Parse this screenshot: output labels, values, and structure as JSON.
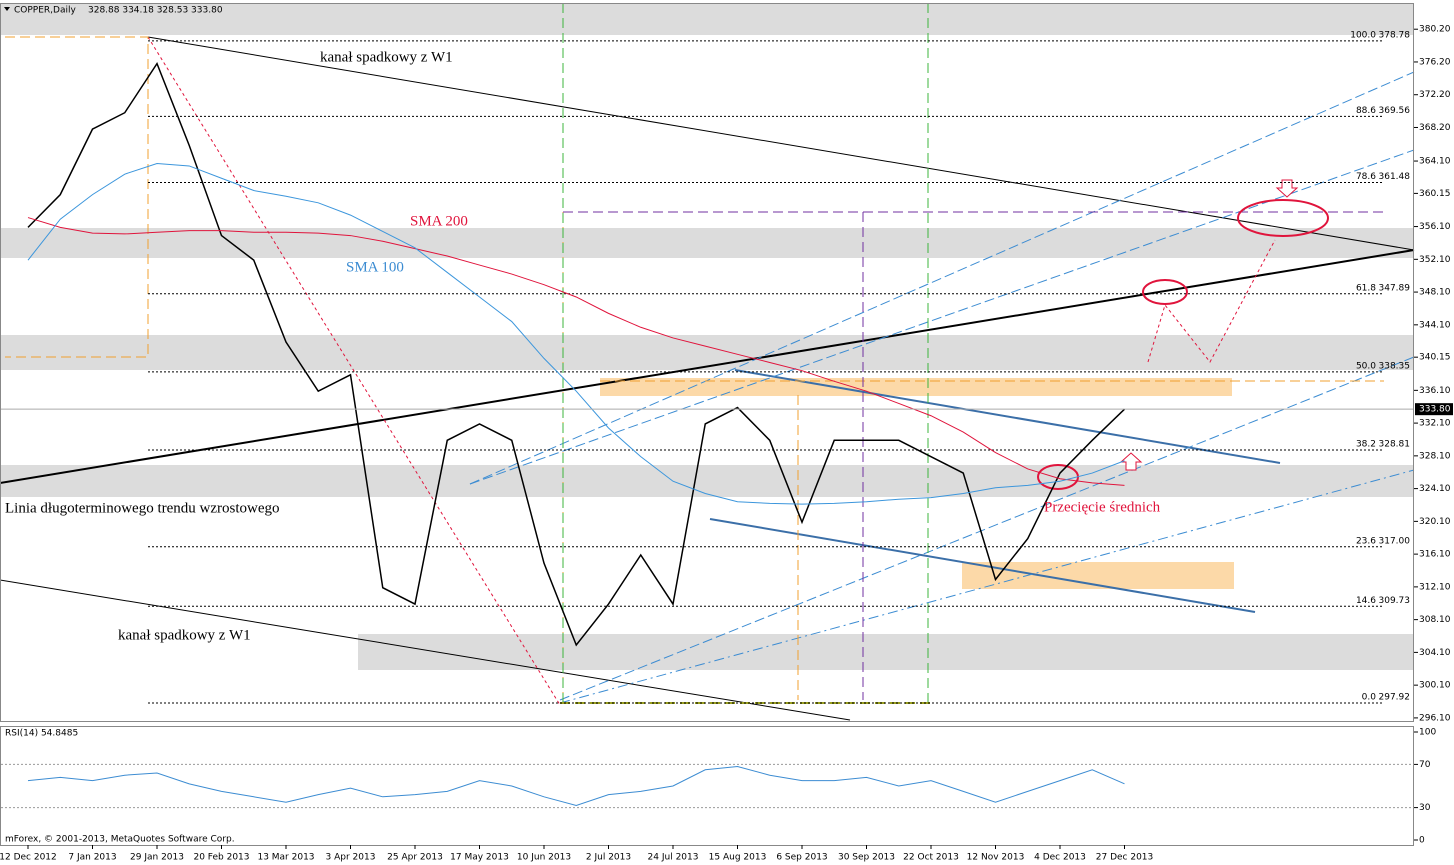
{
  "chart_data": {
    "type": "line",
    "title": "COPPER,Daily",
    "ohlc_header": "328.88 334.18 328.53 333.80",
    "categories": [
      "12 Dec 2012",
      null,
      "7 Jan 2013",
      null,
      "29 Jan 2013",
      null,
      "20 Feb 2013",
      null,
      "13 Mar 2013",
      null,
      "3 Apr 2013",
      null,
      "25 Apr 2013",
      null,
      "17 May 2013",
      null,
      "10 Jun 2013",
      null,
      "2 Jul 2013",
      null,
      "24 Jul 2013",
      null,
      "15 Aug 2013",
      null,
      "6 Sep 2013",
      null,
      "30 Sep 2013",
      null,
      "22 Oct 2013",
      null,
      "12 Nov 2013",
      null,
      "4 Dec 2013",
      null,
      "27 Dec 2013"
    ],
    "series": [
      {
        "color": "#000000",
        "values": [
          356,
          360,
          368,
          370,
          376,
          366,
          355,
          352,
          342,
          336,
          338,
          312,
          310,
          330,
          332,
          330,
          315,
          305,
          310,
          316,
          310,
          332,
          334,
          330,
          320,
          330,
          330,
          330,
          328,
          326,
          313,
          318,
          326,
          330,
          333.8
        ]
      },
      {
        "name": "SMA 200",
        "color": "#e0143c",
        "values": [
          357.2,
          356,
          355.3,
          355.2,
          355.4,
          355.6,
          355.6,
          355.4,
          355.4,
          355.3,
          355,
          354.3,
          353.4,
          352.5,
          351.4,
          350.3,
          349,
          347.5,
          345.5,
          343.8,
          342.5,
          341.5,
          340.5,
          339.5,
          338.5,
          337.2,
          336,
          334.5,
          333,
          331,
          328.5,
          326.5,
          325.3,
          324.8,
          324.5
        ]
      },
      {
        "name": "SMA 100",
        "color": "#3c96dc",
        "values": [
          352,
          357,
          360,
          362.5,
          363.8,
          363.5,
          362,
          360.5,
          359.8,
          359,
          357.5,
          355.5,
          353.5,
          350.5,
          347.5,
          344.5,
          340,
          336,
          331.5,
          328,
          325,
          323.5,
          322.5,
          322.3,
          322.2,
          322.3,
          322.5,
          322.8,
          323,
          323.5,
          324.2,
          324.5,
          325,
          326,
          327.5
        ]
      }
    ],
    "ylim": [
      295.6,
      383.4
    ],
    "yticks": [
      {
        "value": 380.2,
        "label": "380.20"
      },
      {
        "value": 376.2,
        "label": "376.20"
      },
      {
        "value": 372.2,
        "label": "372.20"
      },
      {
        "value": 368.2,
        "label": "368.20"
      },
      {
        "value": 364.1,
        "label": "364.10"
      },
      {
        "value": 360.15,
        "label": "360.15"
      },
      {
        "value": 356.1,
        "label": "356.10"
      },
      {
        "value": 352.1,
        "label": "352.10"
      },
      {
        "value": 348.1,
        "label": "348.10"
      },
      {
        "value": 344.1,
        "label": "344.10"
      },
      {
        "value": 340.15,
        "label": "340.15"
      },
      {
        "value": 336.1,
        "label": "336.10"
      },
      {
        "value": 332.1,
        "label": "332.10"
      },
      {
        "value": 328.1,
        "label": "328.10"
      },
      {
        "value": 324.1,
        "label": "324.10"
      },
      {
        "value": 320.1,
        "label": "320.10"
      },
      {
        "value": 316.1,
        "label": "316.10"
      },
      {
        "value": 312.1,
        "label": "312.10"
      },
      {
        "value": 308.1,
        "label": "308.10"
      },
      {
        "value": 304.1,
        "label": "304.10"
      },
      {
        "value": 300.1,
        "label": "300.10"
      },
      {
        "value": 296.1,
        "label": "296.10"
      }
    ],
    "last_price": {
      "value": 333.8,
      "label": "333.80"
    },
    "fib_levels": [
      {
        "level": "100.0",
        "price": 378.78
      },
      {
        "level": "88.6",
        "price": 369.56
      },
      {
        "level": "78.6",
        "price": 361.48
      },
      {
        "level": "61.8",
        "price": 347.89
      },
      {
        "level": "50.0",
        "price": 338.35
      },
      {
        "level": "38.2",
        "price": 328.81
      },
      {
        "level": "23.6",
        "price": {
          "value": 317,
          "label": "317.00"
        }
      },
      {
        "level": "14.6",
        "price": 309.73
      },
      {
        "level": "0.0",
        "price": 297.92
      }
    ],
    "annotations": [
      "kanał spadkowy z W1",
      "kanał spadkowy z W1",
      "Linia długoterminowego trendu wzrostowego",
      "Przecięcie średnich"
    ],
    "rsi": {
      "title": "RSI(14) 54.8485",
      "color": "#3c8cd2",
      "ylim": [
        0,
        100
      ],
      "yticks": [
        100,
        70,
        30,
        0
      ],
      "values": [
        55,
        58,
        55,
        60,
        62,
        52,
        45,
        40,
        35,
        42,
        48,
        40,
        42,
        45,
        55,
        50,
        40,
        32,
        42,
        45,
        50,
        65,
        68,
        60,
        55,
        55,
        58,
        50,
        55,
        45,
        35,
        45,
        55,
        65,
        52
      ]
    },
    "footer": "mForex, © 2001-2013, MetaQuotes Software Corp."
  }
}
